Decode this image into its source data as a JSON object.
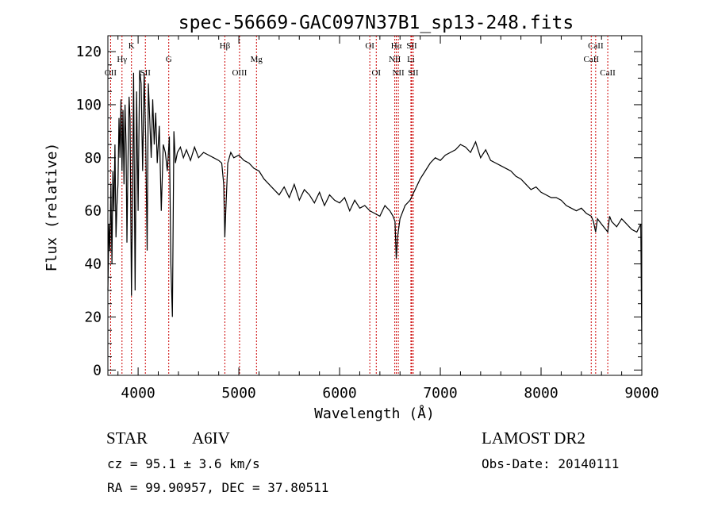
{
  "chart_data": {
    "type": "line",
    "title": "spec-56669-GAC097N37B1_sp13-248.fits",
    "xlabel": "Wavelength (Å)",
    "ylabel": "Flux (relative)",
    "xlim": [
      3700,
      9000
    ],
    "ylim": [
      -2,
      126
    ],
    "x_ticks": [
      4000,
      5000,
      6000,
      7000,
      8000,
      9000
    ],
    "y_ticks": [
      0,
      20,
      40,
      60,
      80,
      100,
      120
    ],
    "line_color": "#000000",
    "marker_color": "#cc0000",
    "spectrum": {
      "x": [
        3700,
        3710,
        3720,
        3730,
        3740,
        3750,
        3760,
        3770,
        3780,
        3790,
        3800,
        3810,
        3820,
        3830,
        3840,
        3850,
        3860,
        3870,
        3880,
        3889,
        3900,
        3910,
        3920,
        3934,
        3945,
        3955,
        3970,
        3985,
        4000,
        4015,
        4030,
        4045,
        4060,
        4075,
        4090,
        4102,
        4115,
        4130,
        4145,
        4160,
        4175,
        4190,
        4210,
        4230,
        4250,
        4270,
        4290,
        4310,
        4325,
        4340,
        4355,
        4370,
        4390,
        4420,
        4450,
        4480,
        4520,
        4560,
        4600,
        4650,
        4700,
        4750,
        4800,
        4830,
        4850,
        4861,
        4870,
        4890,
        4920,
        4950,
        5000,
        5050,
        5100,
        5150,
        5200,
        5250,
        5300,
        5350,
        5400,
        5450,
        5500,
        5550,
        5600,
        5650,
        5700,
        5750,
        5800,
        5850,
        5900,
        5950,
        6000,
        6050,
        6100,
        6150,
        6200,
        6250,
        6300,
        6350,
        6400,
        6450,
        6500,
        6530,
        6550,
        6563,
        6575,
        6600,
        6650,
        6700,
        6750,
        6800,
        6850,
        6900,
        6950,
        7000,
        7050,
        7100,
        7150,
        7200,
        7250,
        7300,
        7350,
        7400,
        7450,
        7500,
        7550,
        7600,
        7650,
        7700,
        7750,
        7800,
        7850,
        7900,
        7950,
        8000,
        8050,
        8100,
        8150,
        8200,
        8250,
        8300,
        8350,
        8400,
        8450,
        8498,
        8520,
        8542,
        8560,
        8600,
        8662,
        8680,
        8700,
        8750,
        8800,
        8850,
        8900,
        8950,
        8990,
        9000
      ],
      "y": [
        30,
        55,
        45,
        70,
        40,
        75,
        60,
        85,
        50,
        62,
        70,
        95,
        80,
        102,
        75,
        98,
        70,
        100,
        85,
        48,
        80,
        103,
        95,
        28,
        65,
        112,
        30,
        105,
        60,
        113,
        108,
        75,
        112,
        88,
        45,
        108,
        95,
        80,
        102,
        85,
        97,
        78,
        92,
        60,
        85,
        82,
        75,
        88,
        40,
        20,
        90,
        78,
        82,
        84,
        80,
        83,
        79,
        84,
        80,
        82,
        81,
        80,
        79,
        78,
        70,
        50,
        60,
        78,
        82,
        80,
        81,
        79,
        78,
        76,
        75,
        72,
        70,
        68,
        66,
        69,
        65,
        70,
        64,
        68,
        66,
        63,
        67,
        62,
        66,
        64,
        63,
        65,
        60,
        64,
        61,
        62,
        60,
        59,
        58,
        62,
        60,
        58,
        56,
        42,
        50,
        57,
        62,
        64,
        68,
        72,
        75,
        78,
        80,
        79,
        81,
        82,
        83,
        85,
        84,
        82,
        86,
        80,
        83,
        79,
        78,
        77,
        76,
        75,
        73,
        72,
        70,
        68,
        69,
        67,
        66,
        65,
        65,
        64,
        62,
        61,
        60,
        61,
        59,
        58,
        56,
        52,
        57,
        55,
        52,
        58,
        56,
        54,
        57,
        55,
        53,
        52,
        55,
        10
      ]
    },
    "lines": [
      {
        "label": "OII",
        "wavelength": 3727,
        "row": 3
      },
      {
        "label": "Hγ",
        "wavelength": 3840,
        "row": 2
      },
      {
        "label": "K",
        "wavelength": 3934,
        "row": 1
      },
      {
        "label": "SII",
        "wavelength": 4072,
        "row": 3
      },
      {
        "label": "G",
        "wavelength": 4304,
        "row": 2
      },
      {
        "label": "Hβ",
        "wavelength": 4861,
        "row": 1
      },
      {
        "label": "OIII",
        "wavelength": 5007,
        "row": 3
      },
      {
        "label": "Mg",
        "wavelength": 5175,
        "row": 2
      },
      {
        "label": "OI",
        "wavelength": 6300,
        "row": 1
      },
      {
        "label": "OI",
        "wavelength": 6364,
        "row": 3
      },
      {
        "label": "Hα",
        "wavelength": 6563,
        "row": 1
      },
      {
        "label": "NII",
        "wavelength": 6548,
        "row": 2
      },
      {
        "label": "NII",
        "wavelength": 6583,
        "row": 3
      },
      {
        "label": "SII",
        "wavelength": 6716,
        "row": 1
      },
      {
        "label": "SII",
        "wavelength": 6731,
        "row": 3
      },
      {
        "label": "Li",
        "wavelength": 6708,
        "row": 2
      },
      {
        "label": "CaII",
        "wavelength": 8542,
        "row": 1
      },
      {
        "label": "CaII",
        "wavelength": 8498,
        "row": 2
      },
      {
        "label": "CaII",
        "wavelength": 8662,
        "row": 3
      }
    ]
  },
  "info": {
    "object_class": "STAR",
    "subclass": "A6IV",
    "survey": "LAMOST DR2",
    "redshift": "cz = 95.1 ± 3.6 km/s",
    "obs_date": "Obs-Date: 20140111",
    "coords": "RA =  99.90957, DEC =  37.80511"
  }
}
